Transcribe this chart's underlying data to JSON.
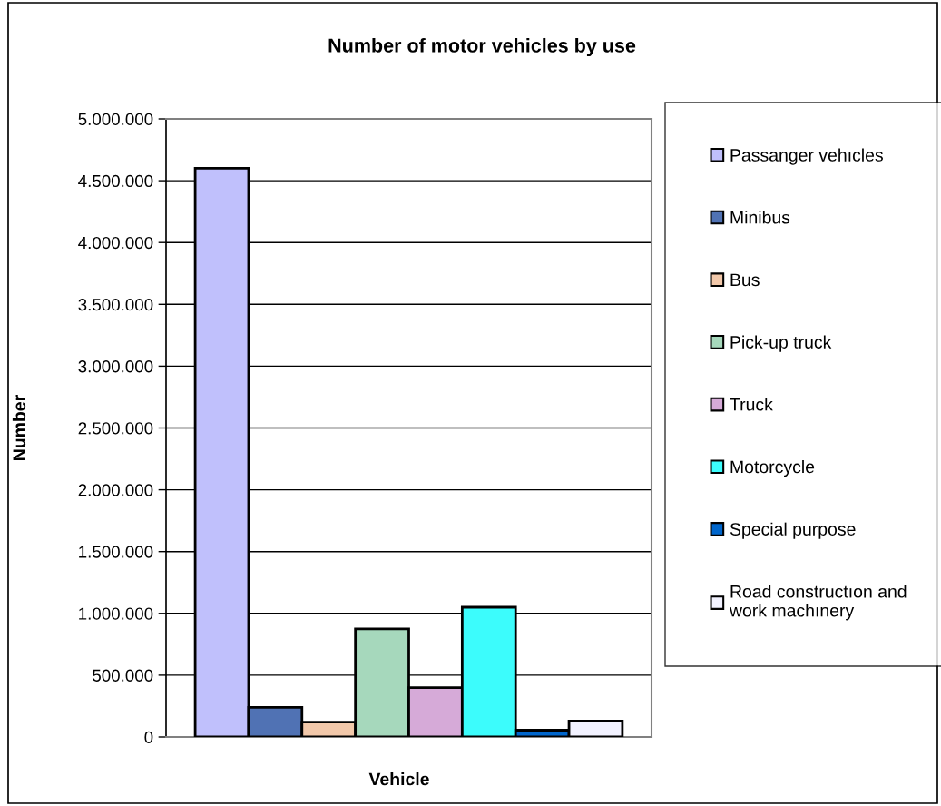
{
  "chart_data": {
    "type": "bar",
    "title": "Number of motor vehicles by use",
    "xlabel": "Vehicle",
    "ylabel": "Number",
    "categories": [
      null
    ],
    "series": [
      {
        "name": "Passanger vehıcles",
        "color": "#c0c0fc",
        "values": [
          4600000
        ]
      },
      {
        "name": "Minibus",
        "color": "#5072b4",
        "values": [
          240000
        ]
      },
      {
        "name": "Bus",
        "color": "#f2c8aa",
        "values": [
          120000
        ]
      },
      {
        "name": "Pick-up truck",
        "color": "#a6d8bc",
        "values": [
          875000
        ]
      },
      {
        "name": "Truck",
        "color": "#d6aad8",
        "values": [
          400000
        ]
      },
      {
        "name": "Motorcycle",
        "color": "#3cfcfc",
        "values": [
          1050000
        ]
      },
      {
        "name": "Special purpose",
        "color": "#0066cc",
        "values": [
          55000
        ]
      },
      {
        "name": "Road constructıon and\nwork machınery",
        "color": "#f2f2ff",
        "values": [
          130000
        ]
      }
    ],
    "ylim": [
      0,
      5000000
    ],
    "yticks": [
      0,
      {
        "value": 500000,
        "label": "500.000"
      },
      {
        "value": 1000000,
        "label": "1.000.000"
      },
      {
        "value": 1500000,
        "label": "1.500.000"
      },
      {
        "value": 2000000,
        "label": "2.000.000"
      },
      {
        "value": 2500000,
        "label": "2.500.000"
      },
      {
        "value": 3000000,
        "label": "3.000.000"
      },
      {
        "value": 3500000,
        "label": "3.500.000"
      },
      {
        "value": 4000000,
        "label": "4.000.000"
      },
      {
        "value": 4500000,
        "label": "4.500.000"
      },
      {
        "value": 5000000,
        "label": "5.000.000"
      }
    ],
    "grid": "y",
    "legend": "right",
    "tick_labels": "y"
  }
}
